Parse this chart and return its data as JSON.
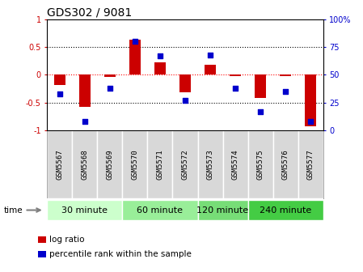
{
  "title": "GDS302 / 9081",
  "samples": [
    "GSM5567",
    "GSM5568",
    "GSM5569",
    "GSM5570",
    "GSM5571",
    "GSM5572",
    "GSM5573",
    "GSM5574",
    "GSM5575",
    "GSM5576",
    "GSM5577"
  ],
  "log_ratio": [
    -0.18,
    -0.58,
    -0.04,
    0.63,
    0.22,
    -0.32,
    0.18,
    -0.02,
    -0.42,
    -0.02,
    -0.93
  ],
  "percentile_rank": [
    33,
    8,
    38,
    80,
    67,
    27,
    68,
    38,
    17,
    35,
    8
  ],
  "groups": [
    {
      "label": "30 minute",
      "start": 0,
      "end": 3,
      "color": "#ccffcc"
    },
    {
      "label": "60 minute",
      "start": 3,
      "end": 6,
      "color": "#99ee99"
    },
    {
      "label": "120 minute",
      "start": 6,
      "end": 8,
      "color": "#77dd77"
    },
    {
      "label": "240 minute",
      "start": 8,
      "end": 11,
      "color": "#44cc44"
    }
  ],
  "bar_color": "#cc0000",
  "point_color": "#0000cc",
  "ylim_left": [
    -1.0,
    1.0
  ],
  "ylim_right": [
    0,
    100
  ],
  "yticks_left": [
    -1,
    -0.5,
    0,
    0.5,
    1
  ],
  "yticks_right": [
    0,
    25,
    50,
    75,
    100
  ],
  "hlines": [
    -0.5,
    0,
    0.5
  ],
  "background_color": "#ffffff",
  "title_fontsize": 10,
  "tick_fontsize": 7,
  "sample_label_fontsize": 6.5,
  "group_fontsize": 8,
  "legend_fontsize": 7.5
}
